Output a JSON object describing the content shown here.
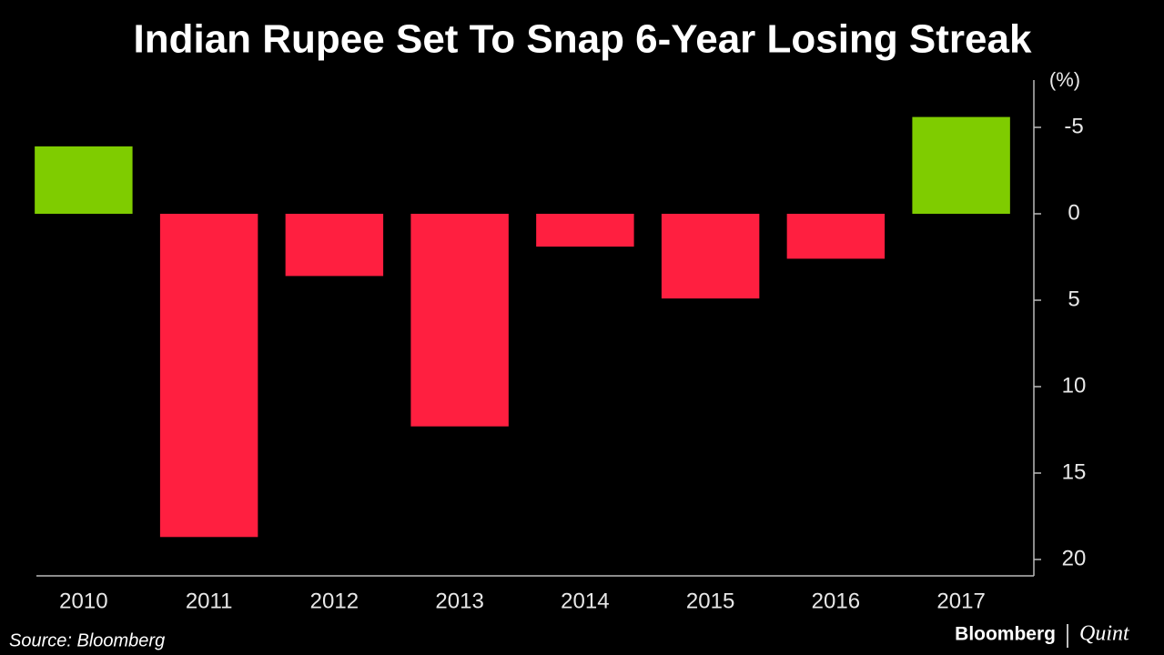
{
  "chart_data": {
    "type": "bar",
    "title": "Indian Rupee Set To Snap 6-Year Losing Streak",
    "y_unit_label": "(%)",
    "categories": [
      "2010",
      "2011",
      "2012",
      "2013",
      "2014",
      "2015",
      "2016",
      "2017"
    ],
    "values": [
      -3.9,
      18.7,
      3.6,
      12.3,
      1.9,
      4.9,
      2.6,
      -5.6
    ],
    "colors": [
      "#7fcc00",
      "#ff1f40",
      "#ff1f40",
      "#ff1f40",
      "#ff1f40",
      "#ff1f40",
      "#ff1f40",
      "#7fcc00"
    ],
    "ylim": [
      -7.5,
      21
    ],
    "y_inverted": true,
    "y_axis_side": "right",
    "yticks": [
      -5,
      0,
      5,
      10,
      15,
      20
    ],
    "grid": false,
    "source": "Source: Bloomberg",
    "branding": [
      "Bloomberg",
      "Quint"
    ]
  }
}
